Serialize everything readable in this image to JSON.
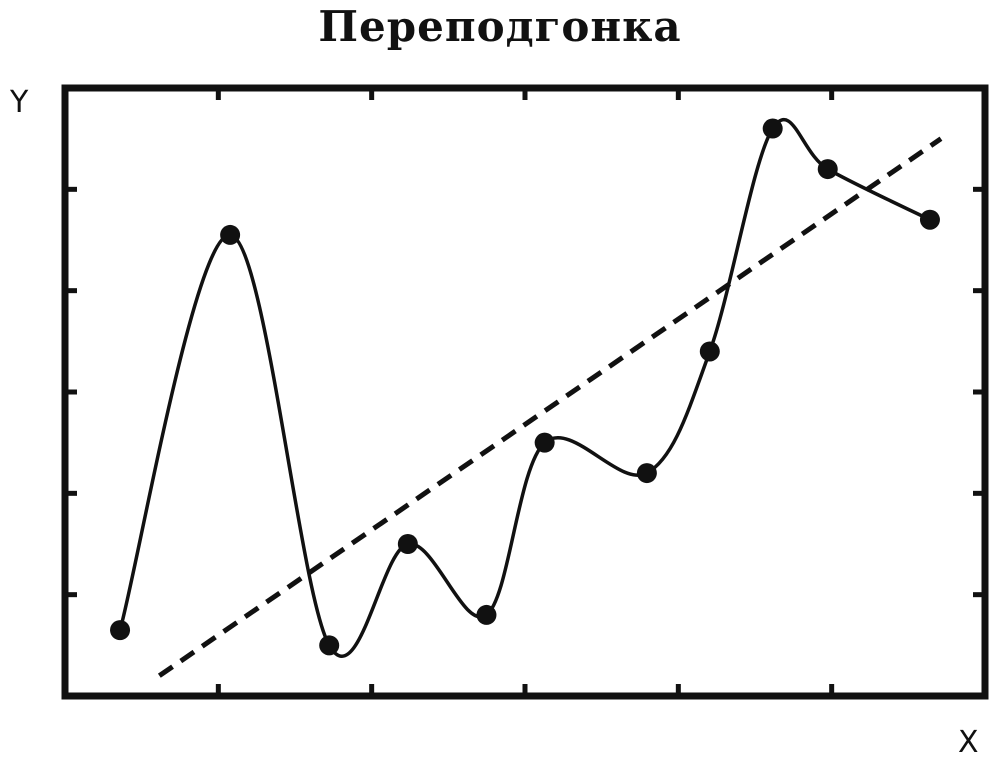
{
  "title": "Переподгонка",
  "chart_data": {
    "type": "scatter",
    "title": "Переподгонка",
    "xlabel": "X",
    "ylabel": "Y",
    "xlim": [
      0,
      5.85
    ],
    "ylim": [
      0,
      6
    ],
    "grid": false,
    "series": [
      {
        "points": [
          {
            "x": 0.35,
            "y": 0.65
          },
          {
            "x": 1.05,
            "y": 4.55
          },
          {
            "x": 1.68,
            "y": 0.5
          },
          {
            "x": 2.18,
            "y": 1.5
          },
          {
            "x": 2.68,
            "y": 0.8
          },
          {
            "x": 3.05,
            "y": 2.5
          },
          {
            "x": 3.7,
            "y": 2.2
          },
          {
            "x": 4.1,
            "y": 3.4
          },
          {
            "x": 4.5,
            "y": 5.6
          },
          {
            "x": 4.85,
            "y": 5.2
          },
          {
            "x": 5.5,
            "y": 4.7
          }
        ]
      },
      {
        "type": "line",
        "style": "dashed",
        "points": [
          {
            "x": 0.6,
            "y": 0.2
          },
          {
            "x": 5.57,
            "y": 5.5
          }
        ]
      }
    ]
  }
}
